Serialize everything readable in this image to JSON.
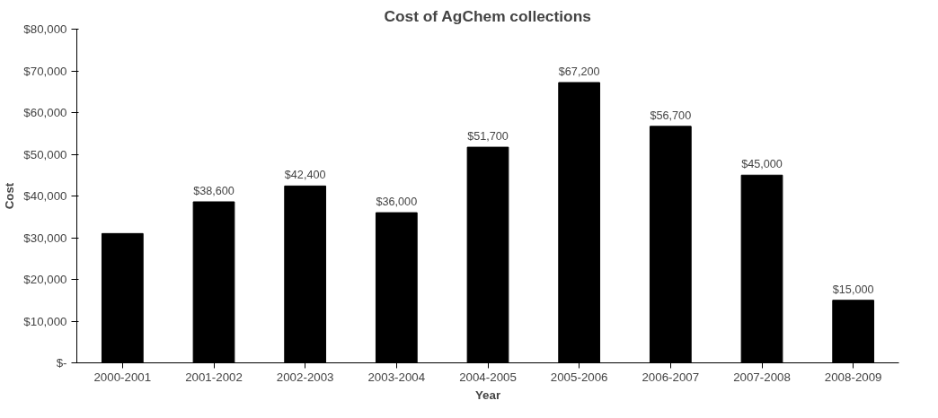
{
  "chart_data": {
    "type": "bar",
    "title": "Cost of AgChem collections",
    "xlabel": "Year",
    "ylabel": "Cost",
    "categories": [
      "2000-2001",
      "2001-2002",
      "2002-2003",
      "2003-2004",
      "2004-2005",
      "2005-2006",
      "2006-2007",
      "2007-2008",
      "2008-2009"
    ],
    "values": [
      31000,
      38600,
      42400,
      36000,
      51700,
      67200,
      56700,
      45000,
      15000
    ],
    "value_labels": [
      null,
      "$38,600",
      "$42,400",
      "$36,000",
      "$51,700",
      "$67,200",
      "$56,700",
      "$45,000",
      "$15,000"
    ],
    "color": "#000000",
    "ylim": [
      0,
      80000
    ],
    "yticks": [
      {
        "value": 0,
        "label": "$-"
      },
      {
        "value": 10000,
        "label": "$10,000"
      },
      {
        "value": 20000,
        "label": "$20,000"
      },
      {
        "value": 30000,
        "label": "$30,000"
      },
      {
        "value": 40000,
        "label": "$40,000"
      },
      {
        "value": 50000,
        "label": "$50,000"
      },
      {
        "value": 60000,
        "label": "$60,000"
      },
      {
        "value": 70000,
        "label": "$70,000"
      },
      {
        "value": 80000,
        "label": "$80,000"
      }
    ],
    "grid": false
  }
}
